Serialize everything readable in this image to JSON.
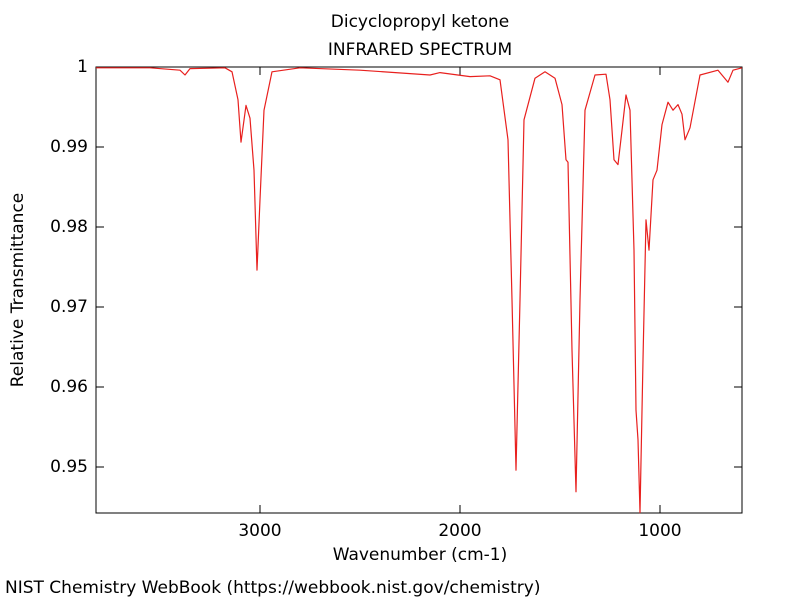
{
  "chart_data": {
    "type": "line",
    "title": "Dicyclopropyl ketone",
    "subtitle": "INFRARED SPECTRUM",
    "x_label": "Wavenumber (cm-1)",
    "y_label": "Relative Transmittance",
    "credit": "NIST Chemistry WebBook (https://webbook.nist.gov/chemistry)",
    "color": "#e8201e",
    "xlim": [
      3820,
      590
    ],
    "ylim": [
      0.94425,
      1
    ],
    "xticks": [
      3000,
      2000,
      1000
    ],
    "yticks": [
      0.95,
      0.96,
      0.97,
      0.98,
      0.99,
      1
    ],
    "x": [
      3820,
      3550,
      3400,
      3375,
      3350,
      3175,
      3140,
      3110,
      3095,
      3070,
      3050,
      3030,
      3015,
      3000,
      2980,
      2940,
      2800,
      2500,
      2150,
      2100,
      1950,
      1850,
      1800,
      1760,
      1740,
      1720,
      1700,
      1680,
      1625,
      1575,
      1525,
      1490,
      1470,
      1460,
      1440,
      1420,
      1400,
      1375,
      1325,
      1270,
      1250,
      1230,
      1210,
      1190,
      1170,
      1150,
      1130,
      1120,
      1110,
      1100,
      1085,
      1070,
      1055,
      1035,
      1015,
      990,
      960,
      935,
      910,
      890,
      875,
      850,
      800,
      710,
      660,
      635,
      590
    ],
    "values": [
      0.9999,
      0.9999,
      0.9996,
      0.999,
      0.9998,
      0.9999,
      0.9994,
      0.9959,
      0.9906,
      0.9952,
      0.9936,
      0.9871,
      0.9746,
      0.9834,
      0.9946,
      0.9994,
      0.9999,
      0.9996,
      0.999,
      0.9993,
      0.9988,
      0.9989,
      0.9984,
      0.9909,
      0.9709,
      0.9496,
      0.9709,
      0.9934,
      0.9986,
      0.9994,
      0.9986,
      0.9953,
      0.9884,
      0.9881,
      0.9646,
      0.9469,
      0.9709,
      0.9946,
      0.999,
      0.9991,
      0.9959,
      0.9884,
      0.9878,
      0.9921,
      0.9965,
      0.9946,
      0.9771,
      0.9571,
      0.9534,
      0.9443,
      0.9634,
      0.9809,
      0.9771,
      0.9859,
      0.9871,
      0.9928,
      0.9956,
      0.9946,
      0.9953,
      0.9941,
      0.9909,
      0.9924,
      0.999,
      0.9996,
      0.9981,
      0.9996,
      0.9999
    ]
  }
}
